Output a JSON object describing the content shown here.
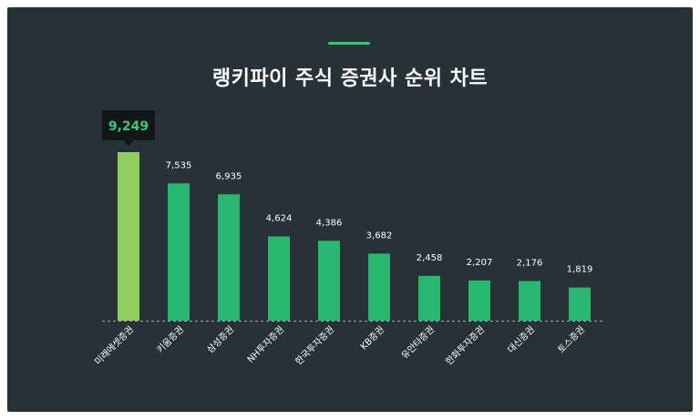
{
  "title": "랭키파이 주식 증권사 순위 차트",
  "colors": {
    "background": "#263238",
    "accent": "#2ecc71",
    "bar": "#26b86f",
    "highlight_bar": "#8fce5a",
    "tooltip_bg": "#0f1719",
    "tooltip_text": "#37c77a",
    "label": "#ffffff",
    "baseline": "#9aa3a8"
  },
  "chart_data": {
    "type": "bar",
    "title": "랭키파이 주식 증권사 순위 차트",
    "categories": [
      "미래에셋증권",
      "키움증권",
      "삼성증권",
      "NH투자증권",
      "한국투자증권",
      "KB증권",
      "유안타증권",
      "한화투자증권",
      "대신증권",
      "토스증권"
    ],
    "values": [
      9249,
      7535,
      6935,
      4624,
      4386,
      3682,
      2458,
      2207,
      2176,
      1819
    ],
    "value_labels": [
      "9,249",
      "7,535",
      "6,935",
      "4,624",
      "4,386",
      "3,682",
      "2,458",
      "2,207",
      "2,176",
      "1,819"
    ],
    "highlight_index": 0,
    "ylim": [
      0,
      9249
    ],
    "grid": false,
    "legend": "none"
  }
}
